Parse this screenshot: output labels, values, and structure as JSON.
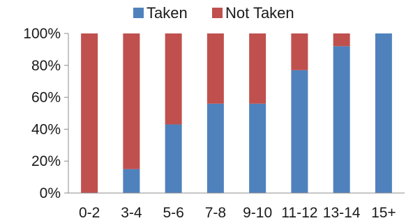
{
  "chart_data": {
    "type": "bar",
    "stacked": true,
    "categories": [
      "0-2",
      "3-4",
      "5-6",
      "7-8",
      "9-10",
      "11-12",
      "13-14",
      "15+"
    ],
    "series": [
      {
        "name": "Taken",
        "color": "#4f81bd",
        "values": [
          0,
          15,
          43,
          56,
          56,
          77,
          92,
          100
        ]
      },
      {
        "name": "Not Taken",
        "color": "#c0504d",
        "values": [
          100,
          85,
          57,
          44,
          44,
          23,
          8,
          0
        ]
      }
    ],
    "ylim": [
      0,
      100
    ],
    "y_ticks": [
      "0%",
      "20%",
      "40%",
      "60%",
      "80%",
      "100%"
    ],
    "y_tick_values": [
      0,
      20,
      40,
      60,
      80,
      100
    ],
    "legend_position": "top",
    "grid": false
  }
}
